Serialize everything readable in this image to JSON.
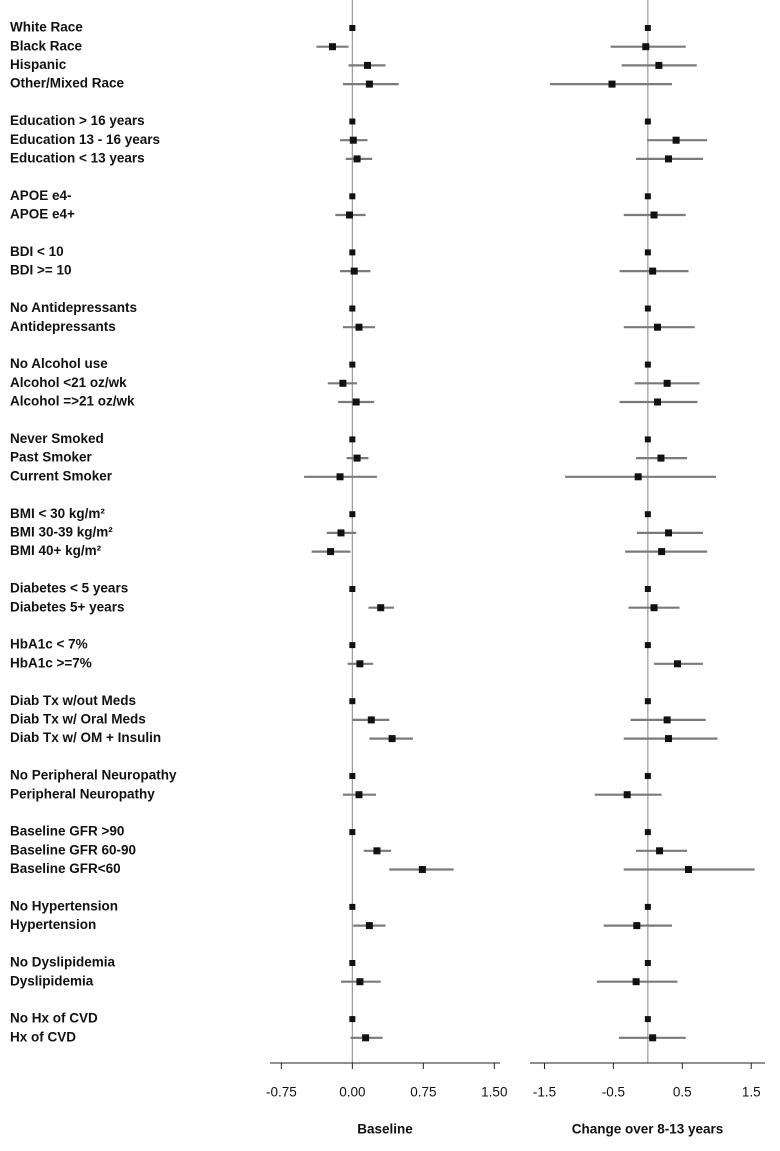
{
  "chart_data": {
    "type": "forest",
    "categories": [
      "White Race",
      "Black Race",
      "Hispanic",
      "Other/Mixed Race",
      null,
      "Education > 16 years",
      "Education 13 - 16 years",
      "Education < 13 years",
      null,
      "APOE e4-",
      "APOE e4+",
      null,
      "BDI < 10",
      "BDI >= 10",
      null,
      "No Antidepressants",
      "Antidepressants",
      null,
      "No Alcohol use",
      "Alcohol <21 oz/wk",
      "Alcohol =>21 oz/wk",
      null,
      "Never Smoked",
      "Past Smoker",
      "Current Smoker",
      null,
      "BMI < 30 kg/m²",
      "BMI 30-39 kg/m²",
      "BMI 40+ kg/m²",
      null,
      "Diabetes < 5 years",
      "Diabetes 5+ years",
      null,
      "HbA1c < 7%",
      "HbA1c >=7%",
      null,
      "Diab Tx w/out Meds",
      "Diab Tx w/ Oral Meds",
      "Diab Tx w/ OM + Insulin",
      null,
      "No Peripheral Neuropathy",
      "Peripheral Neuropathy",
      null,
      "Baseline GFR >90",
      "Baseline GFR 60-90",
      "Baseline GFR<60",
      null,
      "No Hypertension",
      "Hypertension",
      null,
      "No Dyslipidemia",
      "Dyslipidemia",
      null,
      "No Hx of CVD",
      "Hx of CVD"
    ],
    "panels": [
      {
        "xlabel": "Baseline",
        "xlim": [
          -0.87,
          1.56
        ],
        "xticks": [
          {
            "value": -0.75,
            "label": "-0.75"
          },
          {
            "value": 0,
            "label": "0.00"
          },
          {
            "value": 0.75,
            "label": "0.75"
          },
          {
            "value": 1.5,
            "label": "1.50"
          }
        ],
        "values": [
          0,
          -0.21,
          0.16,
          0.18,
          null,
          0,
          0.01,
          0.05,
          null,
          0,
          -0.03,
          null,
          0,
          0.02,
          null,
          0,
          0.07,
          null,
          0,
          -0.1,
          0.04,
          null,
          0,
          0.05,
          -0.13,
          null,
          0,
          -0.12,
          -0.23,
          null,
          0,
          0.3,
          null,
          0,
          0.08,
          null,
          0,
          0.2,
          0.42,
          null,
          0,
          0.07,
          null,
          0,
          0.26,
          0.74,
          null,
          0,
          0.18,
          null,
          0,
          0.08,
          null,
          0,
          0.14
        ],
        "lower": [
          null,
          -0.38,
          -0.04,
          -0.1,
          null,
          null,
          -0.13,
          -0.07,
          null,
          null,
          -0.18,
          null,
          null,
          -0.13,
          null,
          null,
          -0.1,
          null,
          null,
          -0.26,
          -0.15,
          null,
          null,
          -0.06,
          -0.51,
          null,
          null,
          -0.27,
          -0.43,
          null,
          null,
          0.17,
          null,
          null,
          -0.05,
          null,
          null,
          0,
          0.18,
          null,
          null,
          -0.1,
          null,
          null,
          0.12,
          0.39,
          null,
          null,
          0.01,
          null,
          null,
          -0.12,
          null,
          null,
          -0.02
        ],
        "upper": [
          null,
          -0.04,
          0.35,
          0.49,
          null,
          null,
          0.16,
          0.21,
          null,
          null,
          0.14,
          null,
          null,
          0.19,
          null,
          null,
          0.24,
          null,
          null,
          0.05,
          0.23,
          null,
          null,
          0.17,
          0.26,
          null,
          null,
          0.04,
          -0.02,
          null,
          null,
          0.44,
          null,
          null,
          0.22,
          null,
          null,
          0.39,
          0.64,
          null,
          null,
          0.25,
          null,
          null,
          0.41,
          1.07,
          null,
          null,
          0.35,
          null,
          null,
          0.3,
          null,
          null,
          0.32
        ]
      },
      {
        "xlabel": "Change over 8-13 years",
        "xlim": [
          -1.71,
          1.7
        ],
        "xticks": [
          -1.5,
          -0.5,
          0.5,
          1.5
        ],
        "values": [
          0,
          -0.03,
          0.16,
          -0.52,
          null,
          0,
          0.41,
          0.3,
          null,
          0,
          0.09,
          null,
          0,
          0.07,
          null,
          0,
          0.14,
          null,
          0,
          0.28,
          0.14,
          null,
          0,
          0.19,
          -0.14,
          null,
          0,
          0.3,
          0.2,
          null,
          0,
          0.09,
          null,
          0,
          0.43,
          null,
          0,
          0.28,
          0.3,
          null,
          0,
          -0.3,
          null,
          0,
          0.17,
          0.59,
          null,
          0,
          -0.16,
          null,
          0,
          -0.17,
          null,
          0,
          0.07
        ],
        "lower": [
          null,
          -0.54,
          -0.38,
          -1.42,
          null,
          null,
          -0.01,
          -0.17,
          null,
          null,
          -0.35,
          null,
          null,
          -0.41,
          null,
          null,
          -0.35,
          null,
          null,
          -0.19,
          -0.41,
          null,
          null,
          -0.17,
          -1.2,
          null,
          null,
          -0.16,
          -0.33,
          null,
          null,
          -0.28,
          null,
          null,
          0.09,
          null,
          null,
          -0.25,
          -0.35,
          null,
          null,
          -0.77,
          null,
          null,
          -0.17,
          -0.35,
          null,
          null,
          -0.64,
          null,
          null,
          -0.74,
          null,
          null,
          -0.42
        ],
        "upper": [
          null,
          0.55,
          0.71,
          0.35,
          null,
          null,
          0.86,
          0.8,
          null,
          null,
          0.55,
          null,
          null,
          0.59,
          null,
          null,
          0.68,
          null,
          null,
          0.75,
          0.72,
          null,
          null,
          0.57,
          0.99,
          null,
          null,
          0.8,
          0.86,
          null,
          null,
          0.46,
          null,
          null,
          0.8,
          null,
          null,
          0.84,
          1.01,
          null,
          null,
          0.2,
          null,
          null,
          0.57,
          1.55,
          null,
          null,
          0.35,
          null,
          null,
          0.43,
          null,
          null,
          0.55
        ]
      }
    ]
  }
}
